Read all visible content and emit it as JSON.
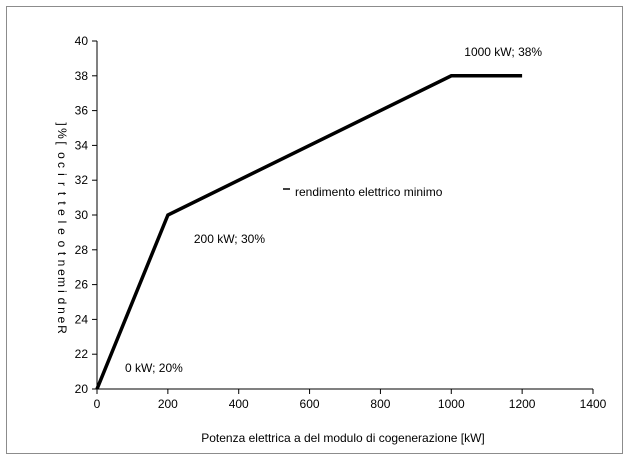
{
  "chart_data": {
    "type": "line",
    "xlabel": "Potenza elettrica  a del modulo  di cogenerazione [kW]",
    "ylabel": "Rendimento elettrico [%]",
    "xlim": [
      0,
      1400
    ],
    "ylim": [
      20,
      40
    ],
    "xticks": [
      0,
      200,
      400,
      600,
      800,
      1000,
      1200,
      1400
    ],
    "yticks": [
      20,
      22,
      24,
      26,
      28,
      30,
      32,
      34,
      36,
      38,
      40
    ],
    "grid": false,
    "legend": {
      "position": "center-right"
    },
    "series": [
      {
        "name": "rendimento  elettrico  minimo",
        "color": "#000000",
        "x": [
          0,
          200,
          1000,
          1200
        ],
        "y": [
          20,
          30,
          38,
          38
        ]
      }
    ],
    "annotations": [
      {
        "text": "0 kW; 20%",
        "x": 0,
        "y": 20
      },
      {
        "text": "200 kW; 30%",
        "x": 200,
        "y": 30
      },
      {
        "text": "1000 kW; 38%",
        "x": 1000,
        "y": 38
      }
    ]
  }
}
